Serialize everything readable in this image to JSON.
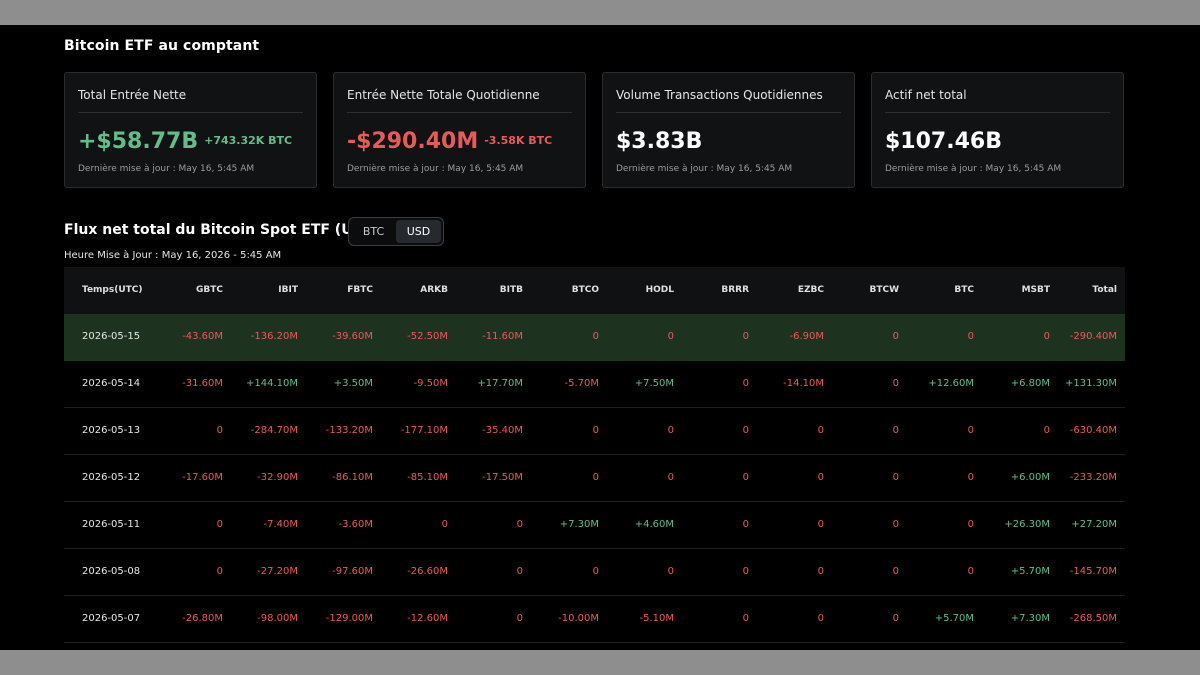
{
  "page_title": "Bitcoin ETF au comptant",
  "cards": [
    {
      "title": "Total Entrée Nette",
      "value": "+$58.77B",
      "sub": "+743.32K BTC",
      "tone": "green",
      "updated": "Dernière mise à jour : May 16, 5:45 AM"
    },
    {
      "title": "Entrée Nette Totale Quotidienne",
      "value": "-$290.40M",
      "sub": "-3.58K BTC",
      "tone": "red",
      "updated": "Dernière mise à jour : May 16, 5:45 AM"
    },
    {
      "title": "Volume Transactions Quotidiennes",
      "value": "$3.83B",
      "sub": "",
      "tone": "white",
      "updated": "Dernière mise à jour : May 16, 5:45 AM"
    },
    {
      "title": "Actif net total",
      "value": "$107.46B",
      "sub": "",
      "tone": "white",
      "updated": "Dernière mise à jour : May 16, 5:45 AM"
    }
  ],
  "section": {
    "title": "Flux net total du Bitcoin Spot ETF (USD)",
    "toggle": {
      "options": [
        "BTC",
        "USD"
      ],
      "selected": "USD"
    },
    "update_time": "Heure Mise à Jour : May 16, 2026 - 5:45 AM"
  },
  "table": {
    "columns": [
      "Temps(UTC)",
      "GBTC",
      "IBIT",
      "FBTC",
      "ARKB",
      "BITB",
      "BTCO",
      "HODL",
      "BRRR",
      "EZBC",
      "BTCW",
      "BTC",
      "MSBT",
      "Total"
    ],
    "rows": [
      [
        "2026-05-15",
        "-43.60M",
        "-136.20M",
        "-39.60M",
        "-52.50M",
        "-11.60M",
        "0",
        "0",
        "0",
        "-6.90M",
        "0",
        "0",
        "0",
        "-290.40M"
      ],
      [
        "2026-05-14",
        "-31.60M",
        "+144.10M",
        "+3.50M",
        "-9.50M",
        "+17.70M",
        "-5.70M",
        "+7.50M",
        "0",
        "-14.10M",
        "0",
        "+12.60M",
        "+6.80M",
        "+131.30M"
      ],
      [
        "2026-05-13",
        "0",
        "-284.70M",
        "-133.20M",
        "-177.10M",
        "-35.40M",
        "0",
        "0",
        "0",
        "0",
        "0",
        "0",
        "0",
        "-630.40M"
      ],
      [
        "2026-05-12",
        "-17.60M",
        "-32.90M",
        "-86.10M",
        "-85.10M",
        "-17.50M",
        "0",
        "0",
        "0",
        "0",
        "0",
        "0",
        "+6.00M",
        "-233.20M"
      ],
      [
        "2026-05-11",
        "0",
        "-7.40M",
        "-3.60M",
        "0",
        "0",
        "+7.30M",
        "+4.60M",
        "0",
        "0",
        "0",
        "0",
        "+26.30M",
        "+27.20M"
      ],
      [
        "2026-05-08",
        "0",
        "-27.20M",
        "-97.60M",
        "-26.60M",
        "0",
        "0",
        "0",
        "0",
        "0",
        "0",
        "0",
        "+5.70M",
        "-145.70M"
      ],
      [
        "2026-05-07",
        "-26.80M",
        "-98.00M",
        "-129.00M",
        "-12.60M",
        "0",
        "-10.00M",
        "-5.10M",
        "0",
        "0",
        "0",
        "+5.70M",
        "+7.30M",
        "-268.50M"
      ]
    ],
    "highlighted_row": 0
  },
  "colors": {
    "positive": "#5fbf8a",
    "negative": "#e85a5a",
    "highlight": "#1d3320"
  }
}
